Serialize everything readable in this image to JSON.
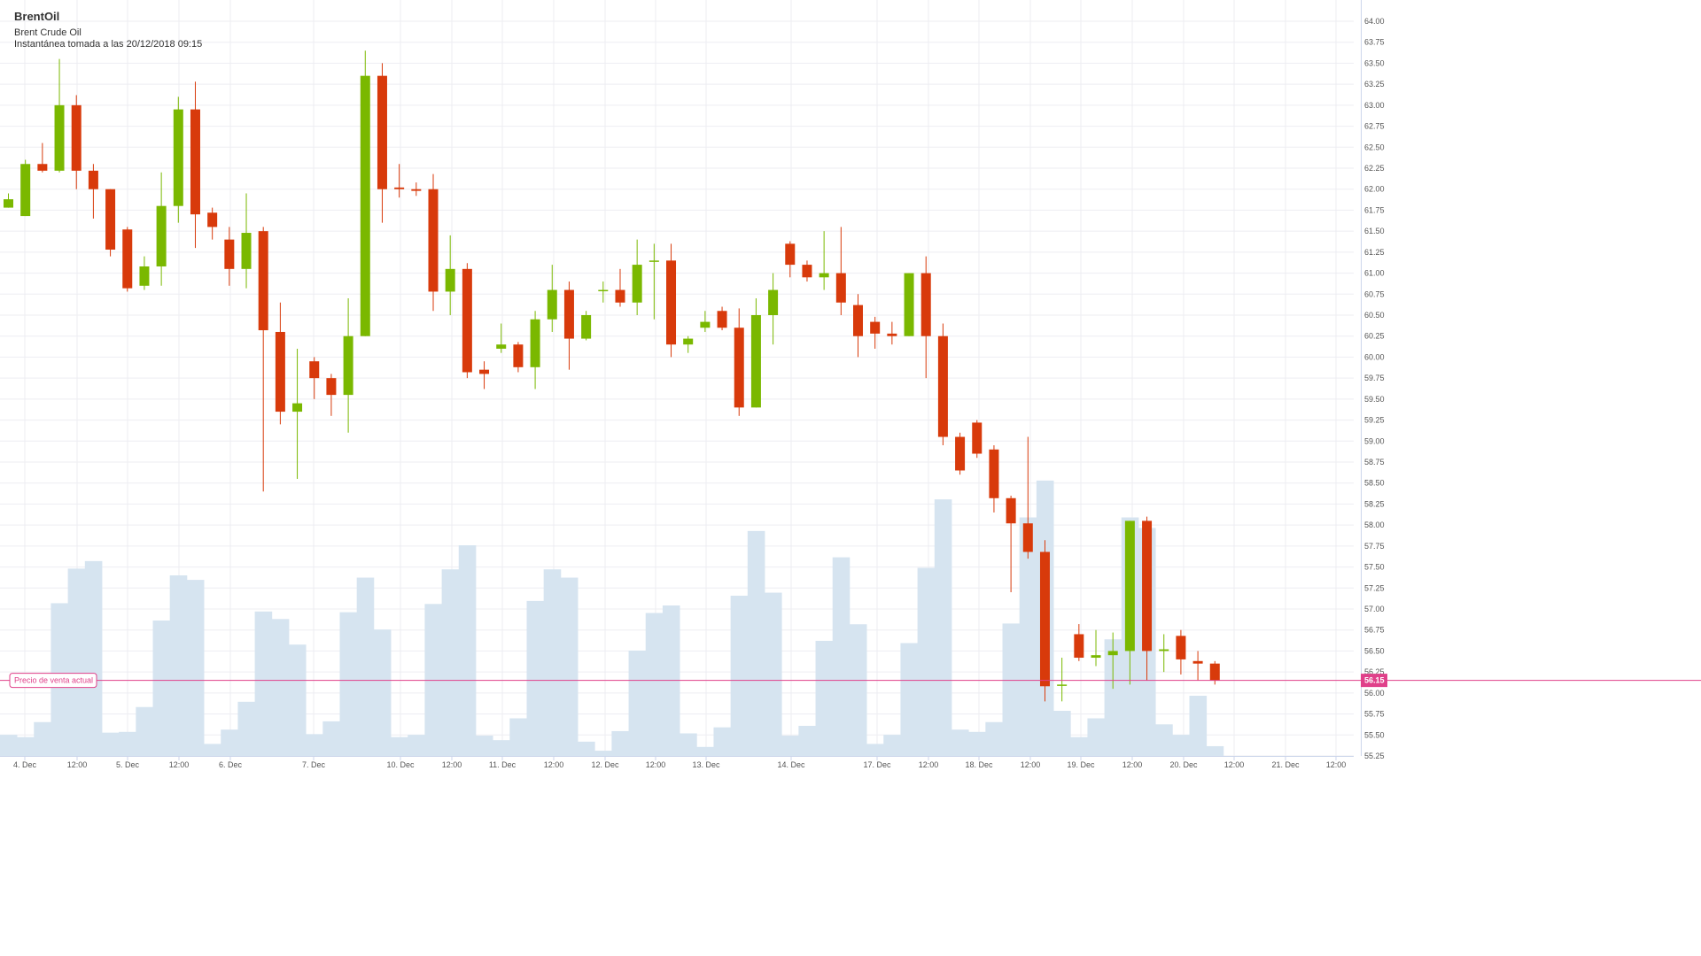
{
  "header": {
    "symbol": "BrentOil",
    "name": "Brent Crude Oil",
    "snapshot": "Instantánea tomada a las 20/12/2018 09:15"
  },
  "current_price": {
    "label": "Precio de venta actual",
    "value": "56.15"
  },
  "colors": {
    "up": "#7ab800",
    "down": "#d83a0b",
    "volume": "#d6e4f0",
    "price_line": "#e0408a",
    "grid": "#ededf2"
  },
  "chart_data": {
    "type": "candlestick",
    "title": "BrentOil",
    "subtitle": "Brent Crude Oil",
    "ylim": [
      55.25,
      64.0
    ],
    "y_ticks": [
      "55.25",
      "55.50",
      "55.75",
      "56.00",
      "56.25",
      "56.50",
      "56.75",
      "57.00",
      "57.25",
      "57.50",
      "57.75",
      "58.00",
      "58.25",
      "58.50",
      "58.75",
      "59.00",
      "59.25",
      "59.50",
      "59.75",
      "60.00",
      "60.25",
      "60.50",
      "60.75",
      "61.00",
      "61.25",
      "61.50",
      "61.75",
      "62.00",
      "62.25",
      "62.50",
      "62.75",
      "63.00",
      "63.25",
      "63.50",
      "63.75",
      "64.00"
    ],
    "x_ticks": [
      "4. Dec",
      "12:00",
      "5. Dec",
      "12:00",
      "6. Dec",
      "7. Dec",
      "10. Dec",
      "12:00",
      "11. Dec",
      "12:00",
      "12. Dec",
      "12:00",
      "13. Dec",
      "14. Dec",
      "17. Dec",
      "12:00",
      "18. Dec",
      "12:00",
      "19. Dec",
      "12:00",
      "20. Dec",
      "12:00",
      "21. Dec",
      "12:00"
    ],
    "grid": true,
    "candles": [
      {
        "o": 61.78,
        "h": 61.95,
        "l": 61.78,
        "c": 61.88
      },
      {
        "o": 61.68,
        "h": 62.35,
        "l": 61.68,
        "c": 62.3
      },
      {
        "o": 62.3,
        "h": 62.55,
        "l": 62.2,
        "c": 62.22
      },
      {
        "o": 62.22,
        "h": 63.55,
        "l": 62.2,
        "c": 63.0
      },
      {
        "o": 63.0,
        "h": 63.12,
        "l": 62.0,
        "c": 62.22
      },
      {
        "o": 62.22,
        "h": 62.3,
        "l": 61.65,
        "c": 62.0
      },
      {
        "o": 62.0,
        "h": 62.0,
        "l": 61.2,
        "c": 61.28
      },
      {
        "o": 61.52,
        "h": 61.55,
        "l": 60.78,
        "c": 60.82
      },
      {
        "o": 60.85,
        "h": 61.2,
        "l": 60.8,
        "c": 61.08
      },
      {
        "o": 61.08,
        "h": 62.2,
        "l": 60.85,
        "c": 61.8
      },
      {
        "o": 61.8,
        "h": 63.1,
        "l": 61.6,
        "c": 62.95
      },
      {
        "o": 62.95,
        "h": 63.28,
        "l": 61.3,
        "c": 61.7
      },
      {
        "o": 61.72,
        "h": 61.78,
        "l": 61.4,
        "c": 61.55
      },
      {
        "o": 61.4,
        "h": 61.55,
        "l": 60.85,
        "c": 61.05
      },
      {
        "o": 61.05,
        "h": 61.95,
        "l": 60.82,
        "c": 61.48
      },
      {
        "o": 61.5,
        "h": 61.55,
        "l": 58.4,
        "c": 60.32
      },
      {
        "o": 60.3,
        "h": 60.65,
        "l": 59.2,
        "c": 59.35
      },
      {
        "o": 59.35,
        "h": 60.1,
        "l": 58.55,
        "c": 59.45
      },
      {
        "o": 59.95,
        "h": 60.0,
        "l": 59.5,
        "c": 59.75
      },
      {
        "o": 59.75,
        "h": 59.8,
        "l": 59.3,
        "c": 59.55
      },
      {
        "o": 59.55,
        "h": 60.7,
        "l": 59.1,
        "c": 60.25
      },
      {
        "o": 60.25,
        "h": 63.65,
        "l": 60.25,
        "c": 63.35
      },
      {
        "o": 63.35,
        "h": 63.5,
        "l": 61.6,
        "c": 62.0
      },
      {
        "o": 62.02,
        "h": 62.3,
        "l": 61.9,
        "c": 62.0
      },
      {
        "o": 62.0,
        "h": 62.08,
        "l": 61.92,
        "c": 61.98
      },
      {
        "o": 62.0,
        "h": 62.18,
        "l": 60.55,
        "c": 60.78
      },
      {
        "o": 60.78,
        "h": 61.45,
        "l": 60.5,
        "c": 61.05
      },
      {
        "o": 61.05,
        "h": 61.12,
        "l": 59.75,
        "c": 59.82
      },
      {
        "o": 59.85,
        "h": 59.95,
        "l": 59.62,
        "c": 59.8
      },
      {
        "o": 60.1,
        "h": 60.4,
        "l": 60.05,
        "c": 60.15
      },
      {
        "o": 60.15,
        "h": 60.18,
        "l": 59.82,
        "c": 59.88
      },
      {
        "o": 59.88,
        "h": 60.55,
        "l": 59.62,
        "c": 60.45
      },
      {
        "o": 60.45,
        "h": 61.1,
        "l": 60.3,
        "c": 60.8
      },
      {
        "o": 60.8,
        "h": 60.9,
        "l": 59.85,
        "c": 60.22
      },
      {
        "o": 60.22,
        "h": 60.55,
        "l": 60.2,
        "c": 60.5
      },
      {
        "o": 60.8,
        "h": 60.9,
        "l": 60.65,
        "c": 60.8
      },
      {
        "o": 60.8,
        "h": 61.05,
        "l": 60.6,
        "c": 60.65
      },
      {
        "o": 60.65,
        "h": 61.4,
        "l": 60.5,
        "c": 61.1
      },
      {
        "o": 61.15,
        "h": 61.35,
        "l": 60.45,
        "c": 61.15
      },
      {
        "o": 61.15,
        "h": 61.35,
        "l": 60.0,
        "c": 60.15
      },
      {
        "o": 60.15,
        "h": 60.25,
        "l": 60.05,
        "c": 60.22
      },
      {
        "o": 60.35,
        "h": 60.55,
        "l": 60.3,
        "c": 60.42
      },
      {
        "o": 60.55,
        "h": 60.6,
        "l": 60.32,
        "c": 60.35
      },
      {
        "o": 60.35,
        "h": 60.58,
        "l": 59.3,
        "c": 59.4
      },
      {
        "o": 59.4,
        "h": 60.7,
        "l": 59.4,
        "c": 60.5
      },
      {
        "o": 60.5,
        "h": 61.0,
        "l": 60.15,
        "c": 60.8
      },
      {
        "o": 61.35,
        "h": 61.38,
        "l": 60.95,
        "c": 61.1
      },
      {
        "o": 61.1,
        "h": 61.15,
        "l": 60.9,
        "c": 60.95
      },
      {
        "o": 60.95,
        "h": 61.5,
        "l": 60.8,
        "c": 61.0
      },
      {
        "o": 61.0,
        "h": 61.55,
        "l": 60.5,
        "c": 60.65
      },
      {
        "o": 60.62,
        "h": 60.75,
        "l": 60.0,
        "c": 60.25
      },
      {
        "o": 60.42,
        "h": 60.48,
        "l": 60.1,
        "c": 60.28
      },
      {
        "o": 60.28,
        "h": 60.42,
        "l": 60.15,
        "c": 60.25
      },
      {
        "o": 60.25,
        "h": 61.0,
        "l": 60.25,
        "c": 61.0
      },
      {
        "o": 61.0,
        "h": 61.2,
        "l": 59.75,
        "c": 60.25
      },
      {
        "o": 60.25,
        "h": 60.4,
        "l": 58.95,
        "c": 59.05
      },
      {
        "o": 59.05,
        "h": 59.1,
        "l": 58.6,
        "c": 58.65
      },
      {
        "o": 59.22,
        "h": 59.25,
        "l": 58.8,
        "c": 58.85
      },
      {
        "o": 58.9,
        "h": 58.95,
        "l": 58.15,
        "c": 58.32
      },
      {
        "o": 58.32,
        "h": 58.35,
        "l": 57.2,
        "c": 58.02
      },
      {
        "o": 58.02,
        "h": 59.05,
        "l": 57.6,
        "c": 57.68
      },
      {
        "o": 57.68,
        "h": 57.82,
        "l": 55.9,
        "c": 56.08
      },
      {
        "o": 56.1,
        "h": 56.42,
        "l": 55.9,
        "c": 56.1
      },
      {
        "o": 56.7,
        "h": 56.82,
        "l": 56.38,
        "c": 56.42
      },
      {
        "o": 56.42,
        "h": 56.75,
        "l": 56.32,
        "c": 56.45
      },
      {
        "o": 56.45,
        "h": 56.72,
        "l": 56.05,
        "c": 56.5
      },
      {
        "o": 56.5,
        "h": 58.05,
        "l": 56.1,
        "c": 58.05
      },
      {
        "o": 58.05,
        "h": 58.1,
        "l": 56.15,
        "c": 56.5
      },
      {
        "o": 56.5,
        "h": 56.7,
        "l": 56.25,
        "c": 56.52
      },
      {
        "o": 56.68,
        "h": 56.75,
        "l": 56.22,
        "c": 56.4
      },
      {
        "o": 56.38,
        "h": 56.5,
        "l": 56.15,
        "c": 56.35
      },
      {
        "o": 56.35,
        "h": 56.38,
        "l": 56.1,
        "c": 56.15
      }
    ],
    "volume": [
      0.28,
      0.25,
      0.45,
      2.03,
      2.49,
      2.59,
      0.31,
      0.32,
      0.65,
      1.8,
      2.4,
      2.34,
      0.16,
      0.35,
      0.72,
      1.92,
      1.82,
      1.48,
      0.29,
      0.46,
      1.91,
      2.37,
      1.68,
      0.25,
      0.28,
      2.02,
      2.48,
      2.8,
      0.27,
      0.21,
      0.5,
      2.06,
      2.48,
      2.37,
      0.19,
      0.07,
      0.33,
      1.4,
      1.9,
      2.0,
      0.3,
      0.12,
      0.38,
      2.13,
      2.99,
      2.17,
      0.27,
      0.4,
      1.53,
      2.64,
      1.75,
      0.16,
      0.28,
      1.5,
      2.5,
      3.41,
      0.35,
      0.32,
      0.45,
      1.76,
      3.17,
      3.66,
      0.6,
      0.25,
      0.5,
      1.55,
      3.17,
      3.03,
      0.42,
      0.28,
      0.8,
      0.13
    ]
  }
}
